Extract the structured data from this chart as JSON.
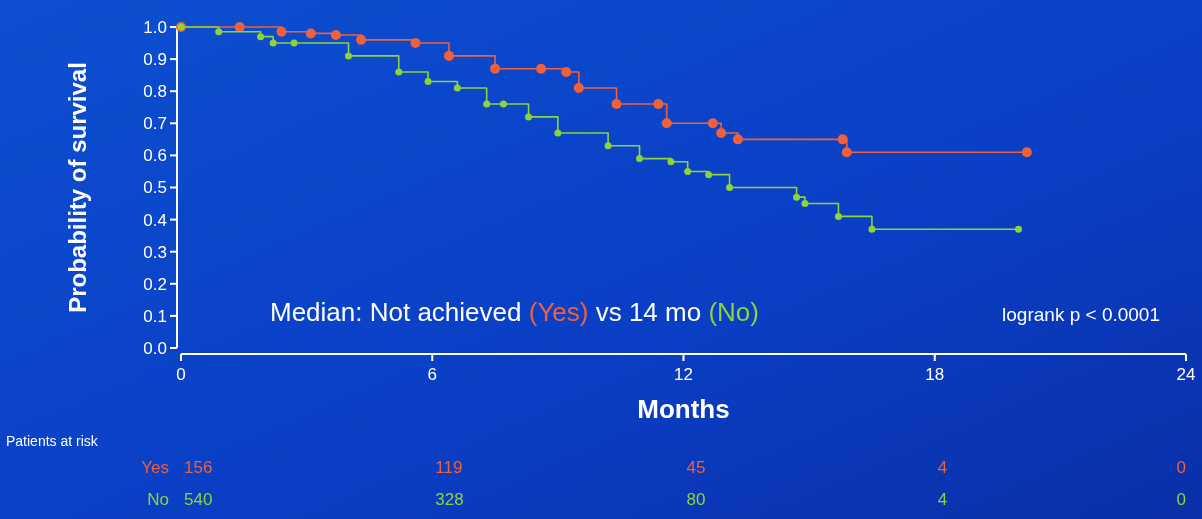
{
  "chart_data": {
    "type": "step",
    "xlabel": "Months",
    "ylabel": "Probability of survival",
    "xlim": [
      0,
      24
    ],
    "ylim": [
      0,
      1
    ],
    "xticks": [
      0,
      6,
      12,
      18,
      24
    ],
    "yticks": [
      {
        "value": 0,
        "label": "0.0"
      },
      {
        "value": 0.1,
        "label": "0.1"
      },
      {
        "value": 0.2,
        "label": "0.2"
      },
      {
        "value": 0.3,
        "label": "0.3"
      },
      {
        "value": 0.4,
        "label": "0.4"
      },
      {
        "value": 0.5,
        "label": "0.5"
      },
      {
        "value": 0.6,
        "label": "0.6"
      },
      {
        "value": 0.7,
        "label": "0.7"
      },
      {
        "value": 0.8,
        "label": "0.8"
      },
      {
        "value": 0.9,
        "label": "0.9"
      },
      {
        "value": 1,
        "label": "1.0"
      }
    ],
    "marker": "circle",
    "grid": false,
    "series": [
      {
        "name": "Yes",
        "color": "#f0603a",
        "x": [
          0,
          1.4,
          2.4,
          3.1,
          3.7,
          4.3,
          5.6,
          6.4,
          7.5,
          8.6,
          9.2,
          9.5,
          10.4,
          11.4,
          11.6,
          12.7,
          12.9,
          13.3,
          15.8,
          15.9,
          20.2
        ],
        "values": [
          1.0,
          1.0,
          0.985,
          0.98,
          0.975,
          0.96,
          0.95,
          0.91,
          0.87,
          0.87,
          0.86,
          0.81,
          0.76,
          0.76,
          0.7,
          0.7,
          0.67,
          0.65,
          0.65,
          0.61,
          0.61
        ]
      },
      {
        "name": "No",
        "color": "#8bd43a",
        "x": [
          0,
          0.9,
          1.9,
          2.2,
          2.7,
          4.0,
          5.2,
          5.9,
          6.6,
          7.3,
          7.7,
          8.3,
          9.0,
          10.2,
          10.95,
          11.7,
          12.1,
          12.6,
          13.1,
          14.7,
          14.9,
          15.7,
          16.5,
          20.0
        ],
        "values": [
          1.0,
          0.985,
          0.97,
          0.95,
          0.95,
          0.91,
          0.86,
          0.83,
          0.81,
          0.76,
          0.76,
          0.72,
          0.67,
          0.63,
          0.59,
          0.58,
          0.55,
          0.54,
          0.5,
          0.47,
          0.45,
          0.41,
          0.37,
          0.37
        ]
      }
    ],
    "annotations": [
      "Median: Not achieved (Yes) vs 14 mo (No)",
      "logrank p < 0.0001",
      "Patients at risk",
      "156",
      "119",
      "45",
      "4",
      "0",
      "540",
      "328",
      "80",
      "4",
      "0"
    ]
  }
}
